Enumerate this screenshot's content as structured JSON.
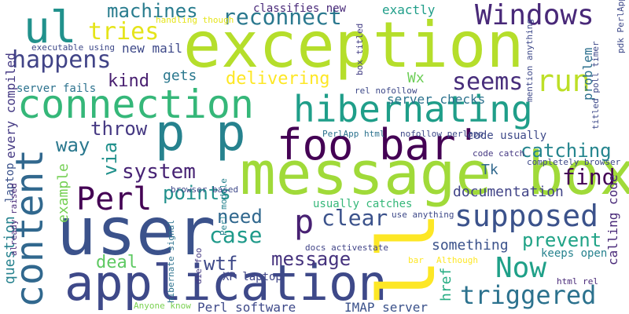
{
  "words": [
    {
      "text": "exception",
      "color": "#b5de2b"
    },
    {
      "text": "message box",
      "color": "#a0da39"
    },
    {
      "text": "user",
      "color": "#3b528b"
    },
    {
      "text": "application",
      "color": "#3e4989"
    },
    {
      "text": "connection",
      "color": "#35b779"
    },
    {
      "text": "hibernating",
      "color": "#1f9e89"
    },
    {
      "text": "foo bar'",
      "color": "#440154"
    },
    {
      "text": "content",
      "color": "#31688e"
    },
    {
      "text": "p p",
      "color": "#26828e"
    },
    {
      "text": "ul",
      "color": "#21918c"
    },
    {
      "text": "happens",
      "color": "#414487"
    },
    {
      "text": "Windows",
      "color": "#482878"
    },
    {
      "text": "reconnect",
      "color": "#2a788e"
    },
    {
      "text": "tries",
      "color": "#e5e419"
    },
    {
      "text": "Perl",
      "color": "#440154"
    },
    {
      "text": "p",
      "color": "#482173"
    },
    {
      "text": "run",
      "color": "#bddf26"
    },
    {
      "text": "seems",
      "color": "#472d7b"
    },
    {
      "text": "supposed",
      "color": "#3b528b"
    },
    {
      "text": "Now",
      "color": "#1fa088"
    },
    {
      "text": "triggered",
      "color": "#2c728e"
    },
    {
      "text": "ll",
      "color": "#fde725"
    },
    {
      "text": "delivering",
      "color": "#fde725"
    },
    {
      "text": "machines",
      "color": "#287c8e"
    },
    {
      "text": "catching",
      "color": "#25858e"
    },
    {
      "text": "system",
      "color": "#482475"
    },
    {
      "text": "points",
      "color": "#21918c"
    },
    {
      "text": "case",
      "color": "#1f9a8a"
    },
    {
      "text": "clear",
      "color": "#3b528b"
    },
    {
      "text": "need",
      "color": "#31688e"
    },
    {
      "text": "find",
      "color": "#440154"
    },
    {
      "text": "prevent",
      "color": "#20a386"
    },
    {
      "text": "message",
      "color": "#46337e"
    },
    {
      "text": "kind",
      "color": "#481f70"
    },
    {
      "text": "throw",
      "color": "#453882"
    },
    {
      "text": "way",
      "color": "#2a788e"
    },
    {
      "text": "via",
      "color": "#21918c"
    },
    {
      "text": "wtf",
      "color": "#3e4989"
    },
    {
      "text": "deal",
      "color": "#5ec962"
    },
    {
      "text": "question",
      "color": "#26828e"
    },
    {
      "text": "documentation",
      "color": "#414487"
    },
    {
      "text": "something",
      "color": "#3b528b"
    },
    {
      "text": "keeps open",
      "color": "#26828e"
    },
    {
      "text": "calling code",
      "color": "#482878"
    },
    {
      "text": "problem",
      "color": "#2d708e"
    },
    {
      "text": "exactly",
      "color": "#1f9e89"
    },
    {
      "text": "new mail",
      "color": "#3e4989"
    },
    {
      "text": "gets",
      "color": "#2a788e"
    },
    {
      "text": "server checks",
      "color": "#2c728e"
    },
    {
      "text": "Wx",
      "color": "#6ece58"
    },
    {
      "text": "Tk",
      "color": "#31688e"
    },
    {
      "text": "example",
      "color": "#75d054"
    },
    {
      "text": "href",
      "color": "#25ac82"
    },
    {
      "text": "XP laptop",
      "color": "#404688"
    },
    {
      "text": "Perl software",
      "color": "#3e4989"
    },
    {
      "text": "IMAP server",
      "color": "#3b528b"
    },
    {
      "text": "classifies new",
      "color": "#482878"
    },
    {
      "text": "every compiled",
      "color": "#443983"
    },
    {
      "text": "server fails",
      "color": "#2c728e"
    },
    {
      "text": "laptop",
      "color": "#3b528b"
    },
    {
      "text": "already raised",
      "color": "#482878"
    },
    {
      "text": "code usually",
      "color": "#3e4989"
    },
    {
      "text": "usually catches",
      "color": "#35b779"
    },
    {
      "text": "docs activestate",
      "color": "#414487"
    },
    {
      "text": "code catch",
      "color": "#453882"
    },
    {
      "text": "completely browser",
      "color": "#3e4989"
    },
    {
      "text": "use anything",
      "color": "#3e4989"
    },
    {
      "text": "nofollow perlapp",
      "color": "#3e4989"
    },
    {
      "text": "PerlApp html",
      "color": "#2c728e"
    },
    {
      "text": "rel nofollow",
      "color": "#3e4989"
    },
    {
      "text": "Although",
      "color": "#fde725"
    },
    {
      "text": "bar",
      "color": "#fde725"
    },
    {
      "text": "html rel",
      "color": "#482878"
    },
    {
      "text": "executable using",
      "color": "#3e4989"
    },
    {
      "text": "handling though",
      "color": "#e5e419"
    },
    {
      "text": "box titled",
      "color": "#433e85"
    },
    {
      "text": "mention anything",
      "color": "#3e4989"
    },
    {
      "text": "titled poll timer",
      "color": "#3e4989"
    },
    {
      "text": "pdk PerlApp",
      "color": "#3e4989"
    },
    {
      "text": "Perl module",
      "color": "#26828e"
    },
    {
      "text": "hibernate signal",
      "color": "#2c728e"
    },
    {
      "text": "die foo",
      "color": "#443983"
    },
    {
      "text": "browser based",
      "color": "#3e4989"
    },
    {
      "text": "Anyone know",
      "color": "#7ad151"
    }
  ]
}
